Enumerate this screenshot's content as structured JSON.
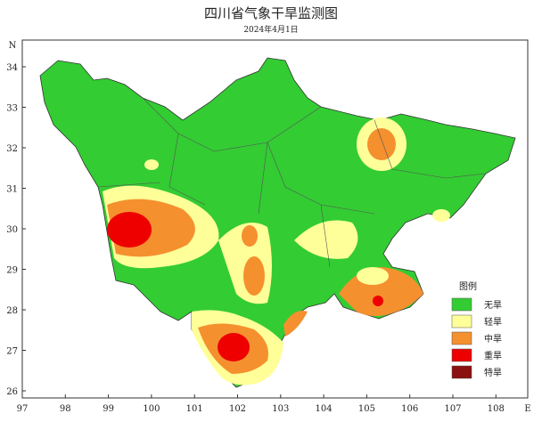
{
  "title": "四川省气象干旱监测图",
  "subtitle": "2024年4月1日",
  "map": {
    "xticks": [
      97,
      98,
      99,
      100,
      101,
      102,
      103,
      104,
      105,
      106,
      107,
      108
    ],
    "yticks": [
      26,
      27,
      28,
      29,
      30,
      31,
      32,
      33,
      34
    ],
    "y_axis_letter": "N",
    "x_axis_letter": "E"
  },
  "legend": {
    "title": "图例",
    "items": [
      {
        "label": "无旱",
        "color": "#33cc33"
      },
      {
        "label": "轻旱",
        "color": "#ffff99"
      },
      {
        "label": "中旱",
        "color": "#f5902f"
      },
      {
        "label": "重旱",
        "color": "#ee0000"
      },
      {
        "label": "特旱",
        "color": "#8b1010"
      }
    ]
  }
}
